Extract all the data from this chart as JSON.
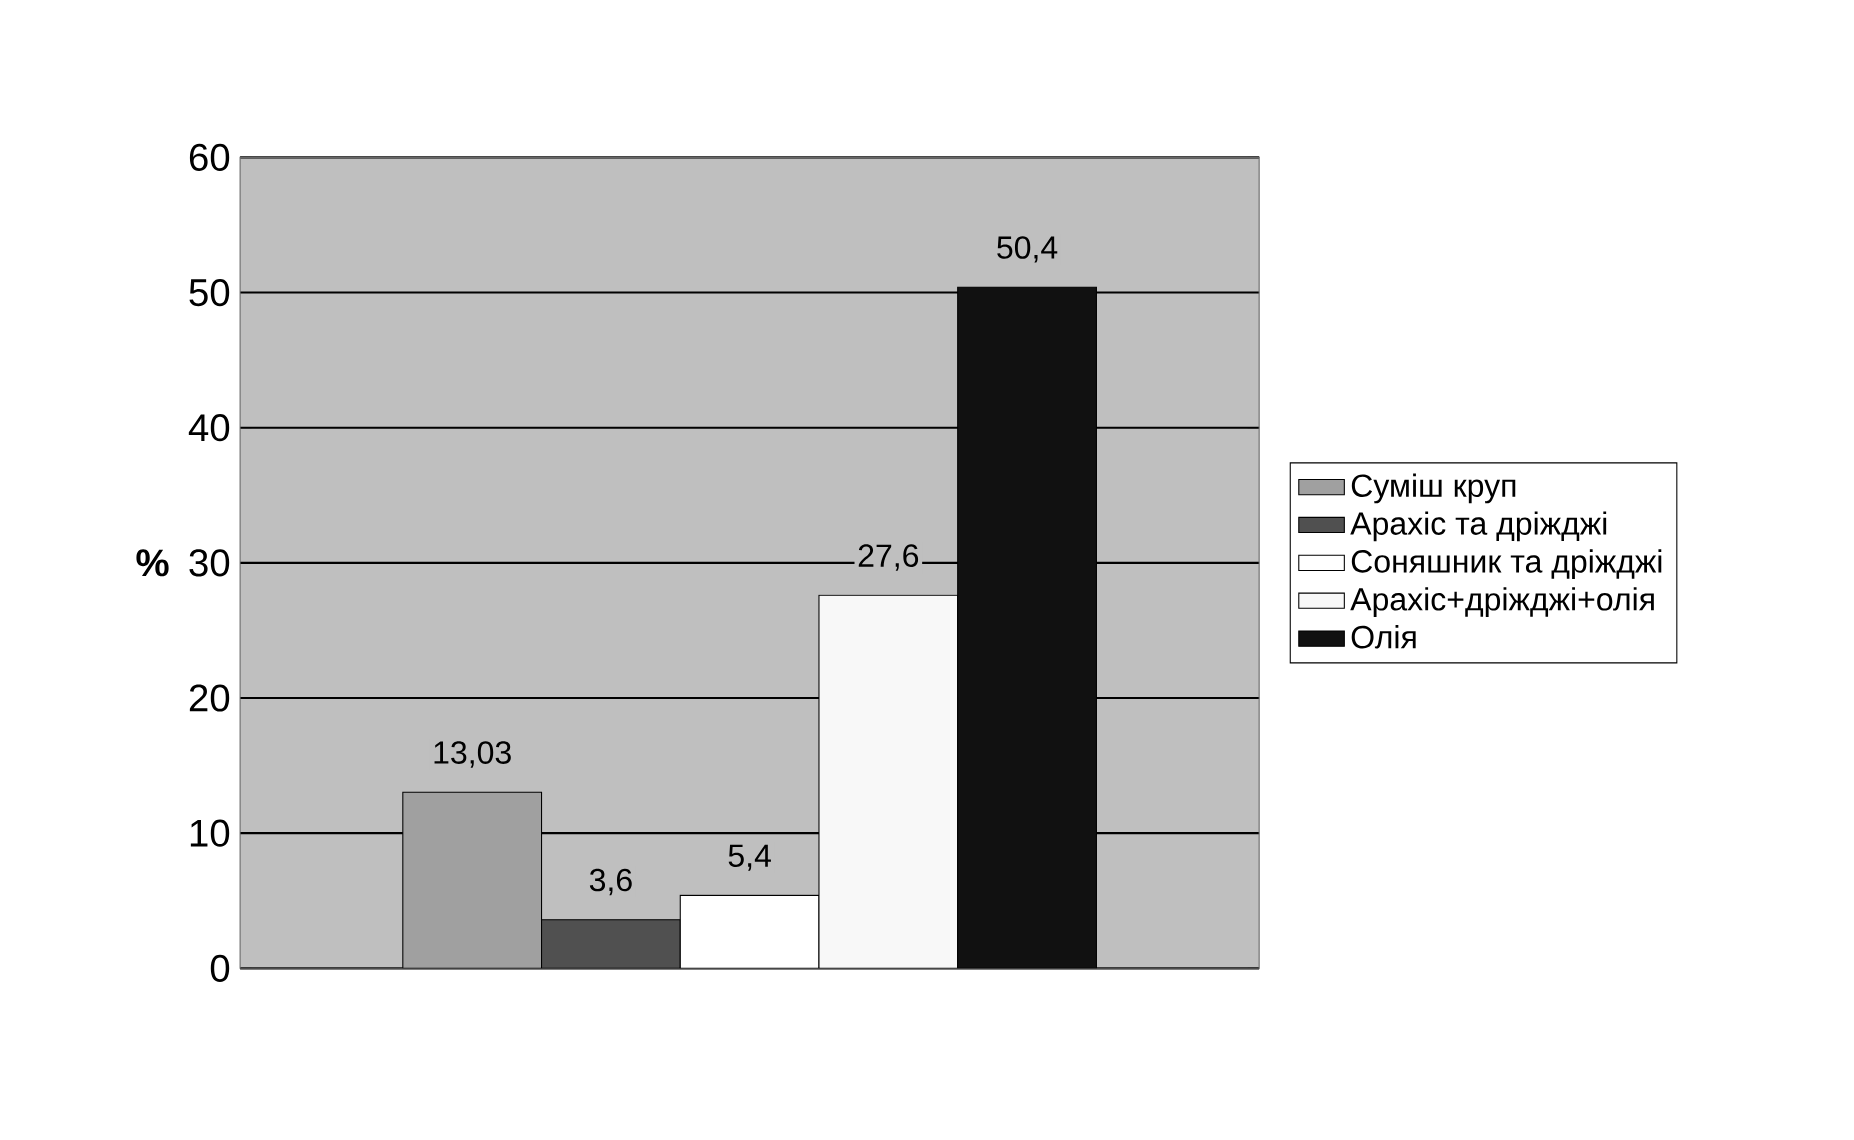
{
  "chart_data": {
    "type": "bar",
    "ylabel": "%",
    "categories": [
      null
    ],
    "series": [
      {
        "name": "Суміш круп",
        "color": "#a0a0a0",
        "values": [
          13.03
        ],
        "value_labels": [
          "13,03"
        ]
      },
      {
        "name": "Арахіс та дріжджі",
        "color": "#505050",
        "values": [
          3.6
        ],
        "value_labels": [
          "3,6"
        ]
      },
      {
        "name": "Соняшник та дріжджі",
        "color": "#ffffff",
        "values": [
          5.4
        ],
        "value_labels": [
          "5,4"
        ]
      },
      {
        "name": "Арахіс+дріжджі+олія",
        "color": "#f8f8f8",
        "values": [
          27.6
        ],
        "value_labels": [
          "27,6"
        ]
      },
      {
        "name": "Олія",
        "color": "#111111",
        "values": [
          50.4
        ],
        "value_labels": [
          "50,4"
        ]
      }
    ],
    "ylim": [
      0,
      60
    ],
    "yticks": [
      0,
      10,
      20,
      30,
      40,
      50,
      60
    ],
    "grid": "y",
    "legend": "right"
  }
}
